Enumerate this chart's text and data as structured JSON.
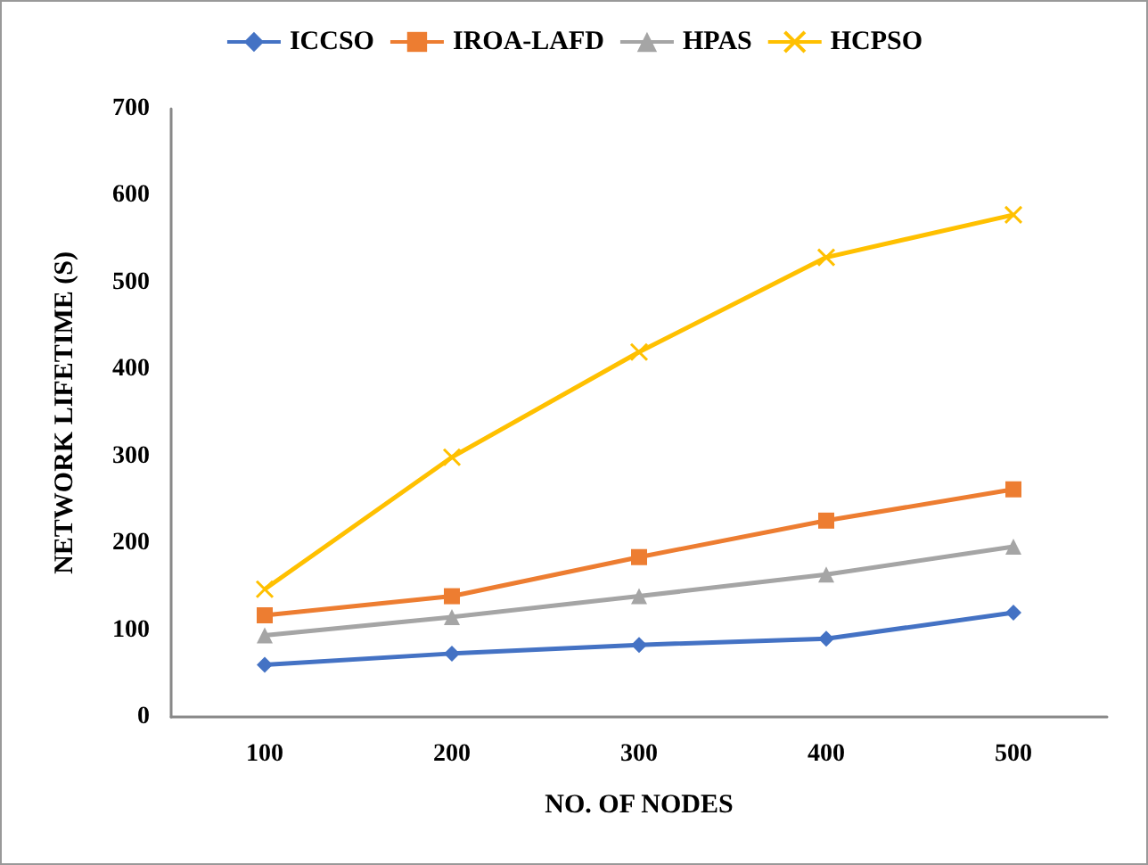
{
  "chart_data": {
    "type": "line",
    "xlabel": "NO. OF NODES",
    "ylabel": "NETWORK LIFETIME (S)",
    "categories": [
      "100",
      "200",
      "300",
      "400",
      "500"
    ],
    "series": [
      {
        "name": "ICCSO",
        "color": "#4472c4",
        "marker": "diamond",
        "values": [
          60,
          73,
          83,
          90,
          120
        ]
      },
      {
        "name": "IROA-LAFD",
        "color": "#ed7d31",
        "marker": "square",
        "values": [
          117,
          139,
          184,
          226,
          262
        ]
      },
      {
        "name": "HPAS",
        "color": "#a5a5a5",
        "marker": "triangle",
        "values": [
          94,
          115,
          139,
          164,
          196
        ]
      },
      {
        "name": "HCPSO",
        "color": "#ffc000",
        "marker": "cross",
        "values": [
          147,
          299,
          420,
          529,
          578
        ]
      }
    ],
    "ylim": [
      0,
      700
    ],
    "yticks": [
      0,
      100,
      200,
      300,
      400,
      500,
      600,
      700
    ],
    "grid": false,
    "legend": "top",
    "line_style": "solid"
  }
}
